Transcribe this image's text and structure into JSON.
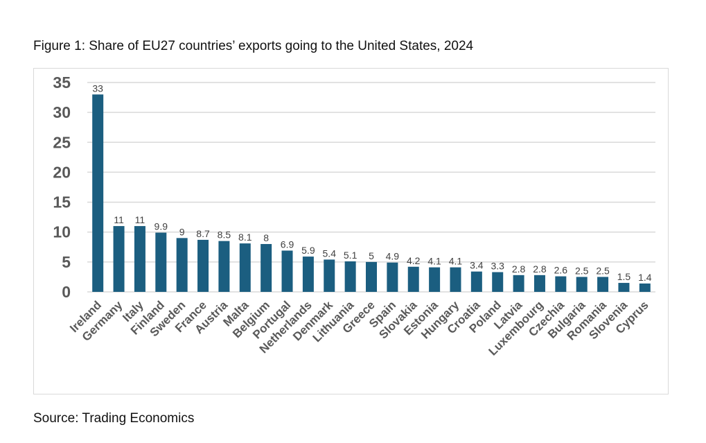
{
  "figure": {
    "title": "Figure 1: Share of EU27 countries’ exports going to the United States, 2024",
    "source": "Source: Trading Economics"
  },
  "colors": {
    "bar": "#1b5e80",
    "grid": "#d9d9d9",
    "axis_text": "#595959"
  },
  "chart_data": {
    "type": "bar",
    "title": "Figure 1: Share of EU27 countries’ exports going to the United States, 2024",
    "xlabel": "",
    "ylabel": "",
    "ylim": [
      0,
      35
    ],
    "yticks": [
      0,
      5,
      10,
      15,
      20,
      25,
      30,
      35
    ],
    "grid": true,
    "legend": "none",
    "categories": [
      "Ireland",
      "Germany",
      "Italy",
      "Finland",
      "Sweden",
      "France",
      "Austria",
      "Malta",
      "Belgium",
      "Portugal",
      "Netherlands",
      "Denmark",
      "Lithuania",
      "Greece",
      "Spain",
      "Slovakia",
      "Estonia",
      "Hungary",
      "Croatia",
      "Poland",
      "Latvia",
      "Luxembourg",
      "Czechia",
      "Bulgaria",
      "Romania",
      "Slovenia",
      "Cyprus"
    ],
    "values": [
      33,
      11,
      11,
      9.9,
      9,
      8.7,
      8.5,
      8.1,
      8,
      6.9,
      5.9,
      5.4,
      5.1,
      5,
      4.9,
      4.2,
      4.1,
      4.1,
      3.4,
      3.3,
      2.8,
      2.8,
      2.6,
      2.5,
      2.5,
      1.5,
      1.4
    ],
    "data_labels": [
      "33",
      "11",
      "11",
      "9.9",
      "9",
      "8.7",
      "8.5",
      "8.1",
      "8",
      "6.9",
      "5.9",
      "5.4",
      "5.1",
      "5",
      "4.9",
      "4.2",
      "4.1",
      "4.1",
      "3.4",
      "3.3",
      "2.8",
      "2.8",
      "2.6",
      "2.5",
      "2.5",
      "1.5",
      "1.4"
    ],
    "source": "Source: Trading Economics"
  }
}
